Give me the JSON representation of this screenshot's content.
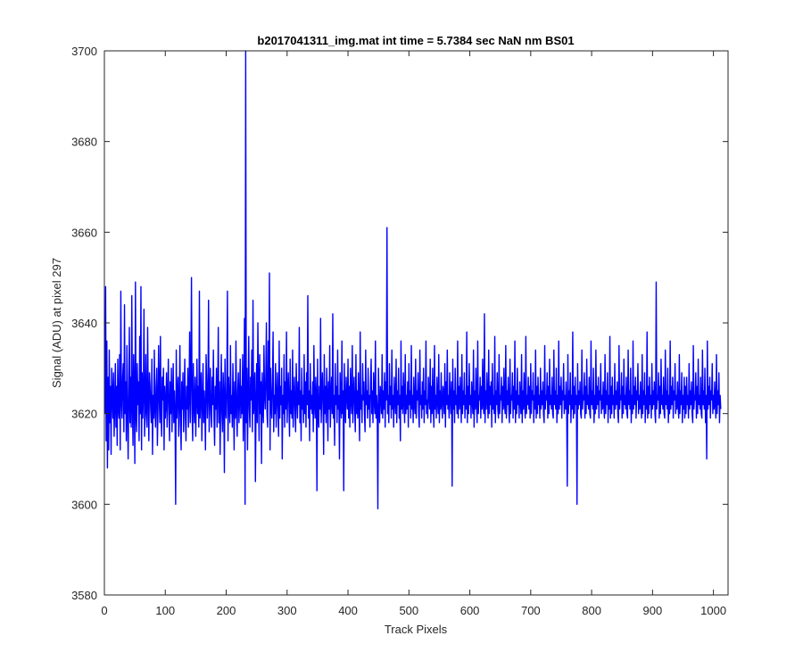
{
  "chart_data": {
    "type": "line",
    "title": "b2017041311_img.mat int time = 5.7384 sec  NaN nm BS01",
    "xlabel": "Track Pixels",
    "ylabel": "Signal (ADU) at pixel 297",
    "xlim": [
      0,
      1024
    ],
    "ylim": [
      3580,
      3700
    ],
    "xticks": [
      0,
      100,
      200,
      300,
      400,
      500,
      600,
      700,
      800,
      900,
      1000
    ],
    "yticks": [
      3580,
      3600,
      3620,
      3640,
      3660,
      3680,
      3700
    ],
    "grid": false,
    "line_color": "#0000ff",
    "series": [
      {
        "x_start": 1,
        "x_step": 1,
        "approximate": true,
        "values": [
          3620,
          3648,
          3614,
          3636,
          3608,
          3628,
          3612,
          3634,
          3618,
          3626,
          3611,
          3630,
          3624,
          3619,
          3629,
          3615,
          3622,
          3631,
          3617,
          3626,
          3613,
          3632,
          3621,
          3619,
          3633,
          3612,
          3647,
          3623,
          3619,
          3628,
          3631,
          3616,
          3644,
          3620,
          3627,
          3614,
          3635,
          3621,
          3610,
          3624,
          3639,
          3618,
          3628,
          3617,
          3646,
          3622,
          3613,
          3633,
          3625,
          3609,
          3649,
          3620,
          3616,
          3631,
          3622,
          3627,
          3614,
          3637,
          3620,
          3648,
          3612,
          3629,
          3619,
          3624,
          3643,
          3615,
          3621,
          3633,
          3620,
          3617,
          3639,
          3623,
          3614,
          3629,
          3626,
          3621,
          3618,
          3632,
          3611,
          3624,
          3619,
          3634,
          3621,
          3617,
          3626,
          3630,
          3613,
          3621,
          3635,
          3624,
          3618,
          3637,
          3620,
          3615,
          3628,
          3623,
          3630,
          3612,
          3626,
          3619,
          3622,
          3629,
          3617,
          3624,
          3632,
          3621,
          3614,
          3627,
          3620,
          3630,
          3616,
          3623,
          3631,
          3618,
          3625,
          3620,
          3600,
          3634,
          3619,
          3624,
          3628,
          3615,
          3622,
          3635,
          3618,
          3612,
          3627,
          3621,
          3629,
          3616,
          3623,
          3632,
          3619,
          3614,
          3626,
          3621,
          3630,
          3617,
          3624,
          3638,
          3618,
          3628,
          3650,
          3620,
          3614,
          3631,
          3622,
          3618,
          3628,
          3615,
          3623,
          3632,
          3620,
          3626,
          3617,
          3647,
          3619,
          3624,
          3629,
          3614,
          3622,
          3631,
          3618,
          3625,
          3621,
          3612,
          3633,
          3627,
          3619,
          3624,
          3645,
          3616,
          3623,
          3630,
          3620,
          3617,
          3628,
          3622,
          3634,
          3619,
          3613,
          3626,
          3621,
          3630,
          3617,
          3624,
          3639,
          3618,
          3627,
          3611,
          3622,
          3633,
          3620,
          3616,
          3629,
          3624,
          3607,
          3632,
          3621,
          3619,
          3626,
          3647,
          3614,
          3628,
          3622,
          3618,
          3635,
          3620,
          3624,
          3617,
          3631,
          3623,
          3612,
          3627,
          3619,
          3636,
          3621,
          3615,
          3625,
          3629,
          3618,
          3623,
          3632,
          3619,
          3626,
          3620,
          3633,
          3614,
          3624,
          3641,
          3600,
          3700,
          3618,
          3630,
          3612,
          3624,
          3637,
          3621,
          3617,
          3628,
          3623,
          3634,
          3616,
          3645,
          3620,
          3624,
          3629,
          3605,
          3622,
          3631,
          3618,
          3640,
          3626,
          3614,
          3633,
          3620,
          3627,
          3609,
          3629,
          3622,
          3618,
          3635,
          3624,
          3621,
          3628,
          3640,
          3620,
          3617,
          3636,
          3623,
          3651,
          3612,
          3630,
          3622,
          3619,
          3627,
          3638,
          3616,
          3624,
          3620,
          3631,
          3617,
          3623,
          3629,
          3621,
          3615,
          3636,
          3619,
          3626,
          3622,
          3630,
          3610,
          3624,
          3620,
          3633,
          3617,
          3627,
          3621,
          3638,
          3618,
          3624,
          3629,
          3622,
          3615,
          3632,
          3620,
          3625,
          3619,
          3634,
          3617,
          3623,
          3628,
          3621,
          3616,
          3631,
          3624,
          3619,
          3627,
          3622,
          3639,
          3618,
          3625,
          3614,
          3630,
          3621,
          3624,
          3618,
          3633,
          3620,
          3627,
          3617,
          3629,
          3622,
          3646,
          3619,
          3625,
          3614,
          3631,
          3621,
          3624,
          3620,
          3627,
          3616,
          3635,
          3622,
          3619,
          3628,
          3624,
          3603,
          3632,
          3620,
          3617,
          3626,
          3621,
          3641,
          3618,
          3624,
          3629,
          3622,
          3611,
          3633,
          3620,
          3626,
          3618,
          3630,
          3624,
          3614,
          3627,
          3621,
          3635,
          3617,
          3623,
          3628,
          3620,
          3642,
          3619,
          3624,
          3613,
          3631,
          3622,
          3626,
          3618,
          3634,
          3621,
          3624,
          3610,
          3629,
          3623,
          3619,
          3636,
          3620,
          3625,
          3603,
          3631,
          3622,
          3618,
          3628,
          3624,
          3621,
          3632,
          3619,
          3626,
          3617,
          3630,
          3623,
          3620,
          3635,
          3618,
          3624,
          3628,
          3621,
          3616,
          3633,
          3620,
          3625,
          3619,
          3629,
          3622,
          3614,
          3638,
          3621,
          3624,
          3618,
          3631,
          3623,
          3627,
          3620,
          3616,
          3634,
          3622,
          3625,
          3619,
          3630,
          3621,
          3624,
          3617,
          3627,
          3632,
          3620,
          3625,
          3618,
          3629,
          3623,
          3620,
          3636,
          3619,
          3624,
          3621,
          3599,
          3630,
          3622,
          3618,
          3626,
          3624,
          3620,
          3633,
          3619,
          3625,
          3621,
          3629,
          3617,
          3627,
          3623,
          3661,
          3620,
          3624,
          3618,
          3631,
          3622,
          3626,
          3619,
          3634,
          3621,
          3624,
          3617,
          3628,
          3623,
          3620,
          3632,
          3618,
          3625,
          3622,
          3630,
          3619,
          3624,
          3614,
          3636,
          3621,
          3626,
          3620,
          3629,
          3623,
          3618,
          3633,
          3620,
          3624,
          3621,
          3627,
          3617,
          3631,
          3622,
          3625,
          3619,
          3635,
          3621,
          3624,
          3618,
          3628,
          3622,
          3620,
          3632,
          3619,
          3625,
          3623,
          3629,
          3620,
          3617,
          3634,
          3622,
          3624,
          3619,
          3627,
          3621,
          3630,
          3618,
          3625,
          3622,
          3636,
          3620,
          3623,
          3619,
          3628,
          3624,
          3621,
          3632,
          3618,
          3626,
          3620,
          3630,
          3622,
          3617,
          3635,
          3621,
          3624,
          3619,
          3628,
          3623,
          3620,
          3633,
          3618,
          3625,
          3621,
          3629,
          3622,
          3619,
          3626,
          3624,
          3620,
          3631,
          3617,
          3627,
          3622,
          3634,
          3621,
          3624,
          3619,
          3629,
          3623,
          3620,
          3627,
          3604,
          3632,
          3621,
          3625,
          3618,
          3630,
          3622,
          3624,
          3620,
          3636,
          3619,
          3626,
          3621,
          3628,
          3623,
          3618,
          3633,
          3620,
          3625,
          3622,
          3629,
          3619,
          3624,
          3621,
          3638,
          3618,
          3626,
          3620,
          3631,
          3622,
          3624,
          3619,
          3627,
          3623,
          3620,
          3634,
          3617,
          3625,
          3621,
          3630,
          3622,
          3618,
          3636,
          3620,
          3624,
          3623,
          3628,
          3619,
          3626,
          3621,
          3632,
          3622,
          3620,
          3642,
          3618,
          3625,
          3621,
          3629,
          3623,
          3619,
          3634,
          3620,
          3626,
          3622,
          3627,
          3617,
          3631,
          3621,
          3624,
          3620,
          3637,
          3618,
          3625,
          3622,
          3629,
          3621,
          3619,
          3633,
          3620,
          3624,
          3623,
          3628,
          3618,
          3626,
          3621,
          3630,
          3622,
          3620,
          3635,
          3619,
          3625,
          3622,
          3628,
          3621,
          3618,
          3632,
          3620,
          3624,
          3623,
          3629,
          3619,
          3626,
          3621,
          3636,
          3618,
          3625,
          3620,
          3630,
          3622,
          3624,
          3619,
          3627,
          3623,
          3620,
          3633,
          3618,
          3625,
          3621,
          3629,
          3622,
          3619,
          3637,
          3620,
          3624,
          3622,
          3628,
          3621,
          3626,
          3619,
          3631,
          3620,
          3625,
          3623,
          3629,
          3618,
          3624,
          3621,
          3634,
          3619,
          3626,
          3620,
          3628,
          3622,
          3624,
          3619,
          3630,
          3621,
          3625,
          3622,
          3627,
          3620,
          3618,
          3635,
          3621,
          3624,
          3623,
          3629,
          3619,
          3626,
          3620,
          3632,
          3622,
          3624,
          3621,
          3628,
          3620,
          3619,
          3634,
          3622,
          3625,
          3621,
          3630,
          3618,
          3624,
          3620,
          3636,
          3621,
          3626,
          3622,
          3628,
          3619,
          3625,
          3623,
          3631,
          3620,
          3624,
          3621,
          3627,
          3622,
          3604,
          3633,
          3620,
          3625,
          3622,
          3629,
          3618,
          3624,
          3621,
          3638,
          3619,
          3626,
          3620,
          3628,
          3622,
          3624,
          3600,
          3631,
          3621,
          3625,
          3622,
          3627,
          3620,
          3619,
          3634,
          3621,
          3624,
          3623,
          3629,
          3619,
          3626,
          3620,
          3632,
          3622,
          3624,
          3621,
          3628,
          3620,
          3619,
          3636,
          3622,
          3625,
          3621,
          3630,
          3618,
          3624,
          3620,
          3634,
          3621,
          3626,
          3622,
          3628,
          3619,
          3625,
          3623,
          3631,
          3620,
          3624,
          3621,
          3627,
          3622,
          3619,
          3633,
          3620,
          3625,
          3622,
          3629,
          3618,
          3624,
          3621,
          3637,
          3619,
          3626,
          3620,
          3628,
          3622,
          3624,
          3619,
          3631,
          3621,
          3625,
          3622,
          3627,
          3620,
          3618,
          3635,
          3621,
          3624,
          3623,
          3629,
          3619,
          3626,
          3620,
          3632,
          3622,
          3624,
          3621,
          3628,
          3620,
          3619,
          3634,
          3622,
          3625,
          3621,
          3630,
          3618,
          3624,
          3620,
          3636,
          3621,
          3626,
          3622,
          3628,
          3619,
          3625,
          3623,
          3631,
          3620,
          3624,
          3621,
          3627,
          3622,
          3619,
          3633,
          3620,
          3625,
          3622,
          3629,
          3618,
          3624,
          3621,
          3638,
          3619,
          3626,
          3620,
          3628,
          3622,
          3624,
          3619,
          3631,
          3621,
          3625,
          3622,
          3627,
          3620,
          3618,
          3649,
          3621,
          3624,
          3623,
          3629,
          3619,
          3626,
          3620,
          3632,
          3622,
          3624,
          3621,
          3628,
          3620,
          3619,
          3634,
          3622,
          3625,
          3621,
          3630,
          3618,
          3624,
          3620,
          3636,
          3621,
          3626,
          3622,
          3628,
          3619,
          3625,
          3623,
          3631,
          3620,
          3624,
          3621,
          3627,
          3622,
          3619,
          3633,
          3620,
          3625,
          3622,
          3629,
          3618,
          3624,
          3621,
          3628,
          3619,
          3626,
          3620,
          3628,
          3622,
          3624,
          3619,
          3631,
          3621,
          3625,
          3622,
          3627,
          3620,
          3618,
          3635,
          3621,
          3624,
          3623,
          3629,
          3619,
          3626,
          3620,
          3632,
          3622,
          3624,
          3621,
          3628,
          3620,
          3619,
          3634,
          3622,
          3625,
          3621,
          3630,
          3618,
          3624,
          3610,
          3636,
          3621,
          3626,
          3622,
          3628,
          3619,
          3625,
          3623,
          3631,
          3620,
          3624,
          3621,
          3627,
          3622,
          3619,
          3633,
          3620,
          3625,
          3622,
          3629,
          3618,
          3624,
          3621
        ]
      }
    ]
  }
}
